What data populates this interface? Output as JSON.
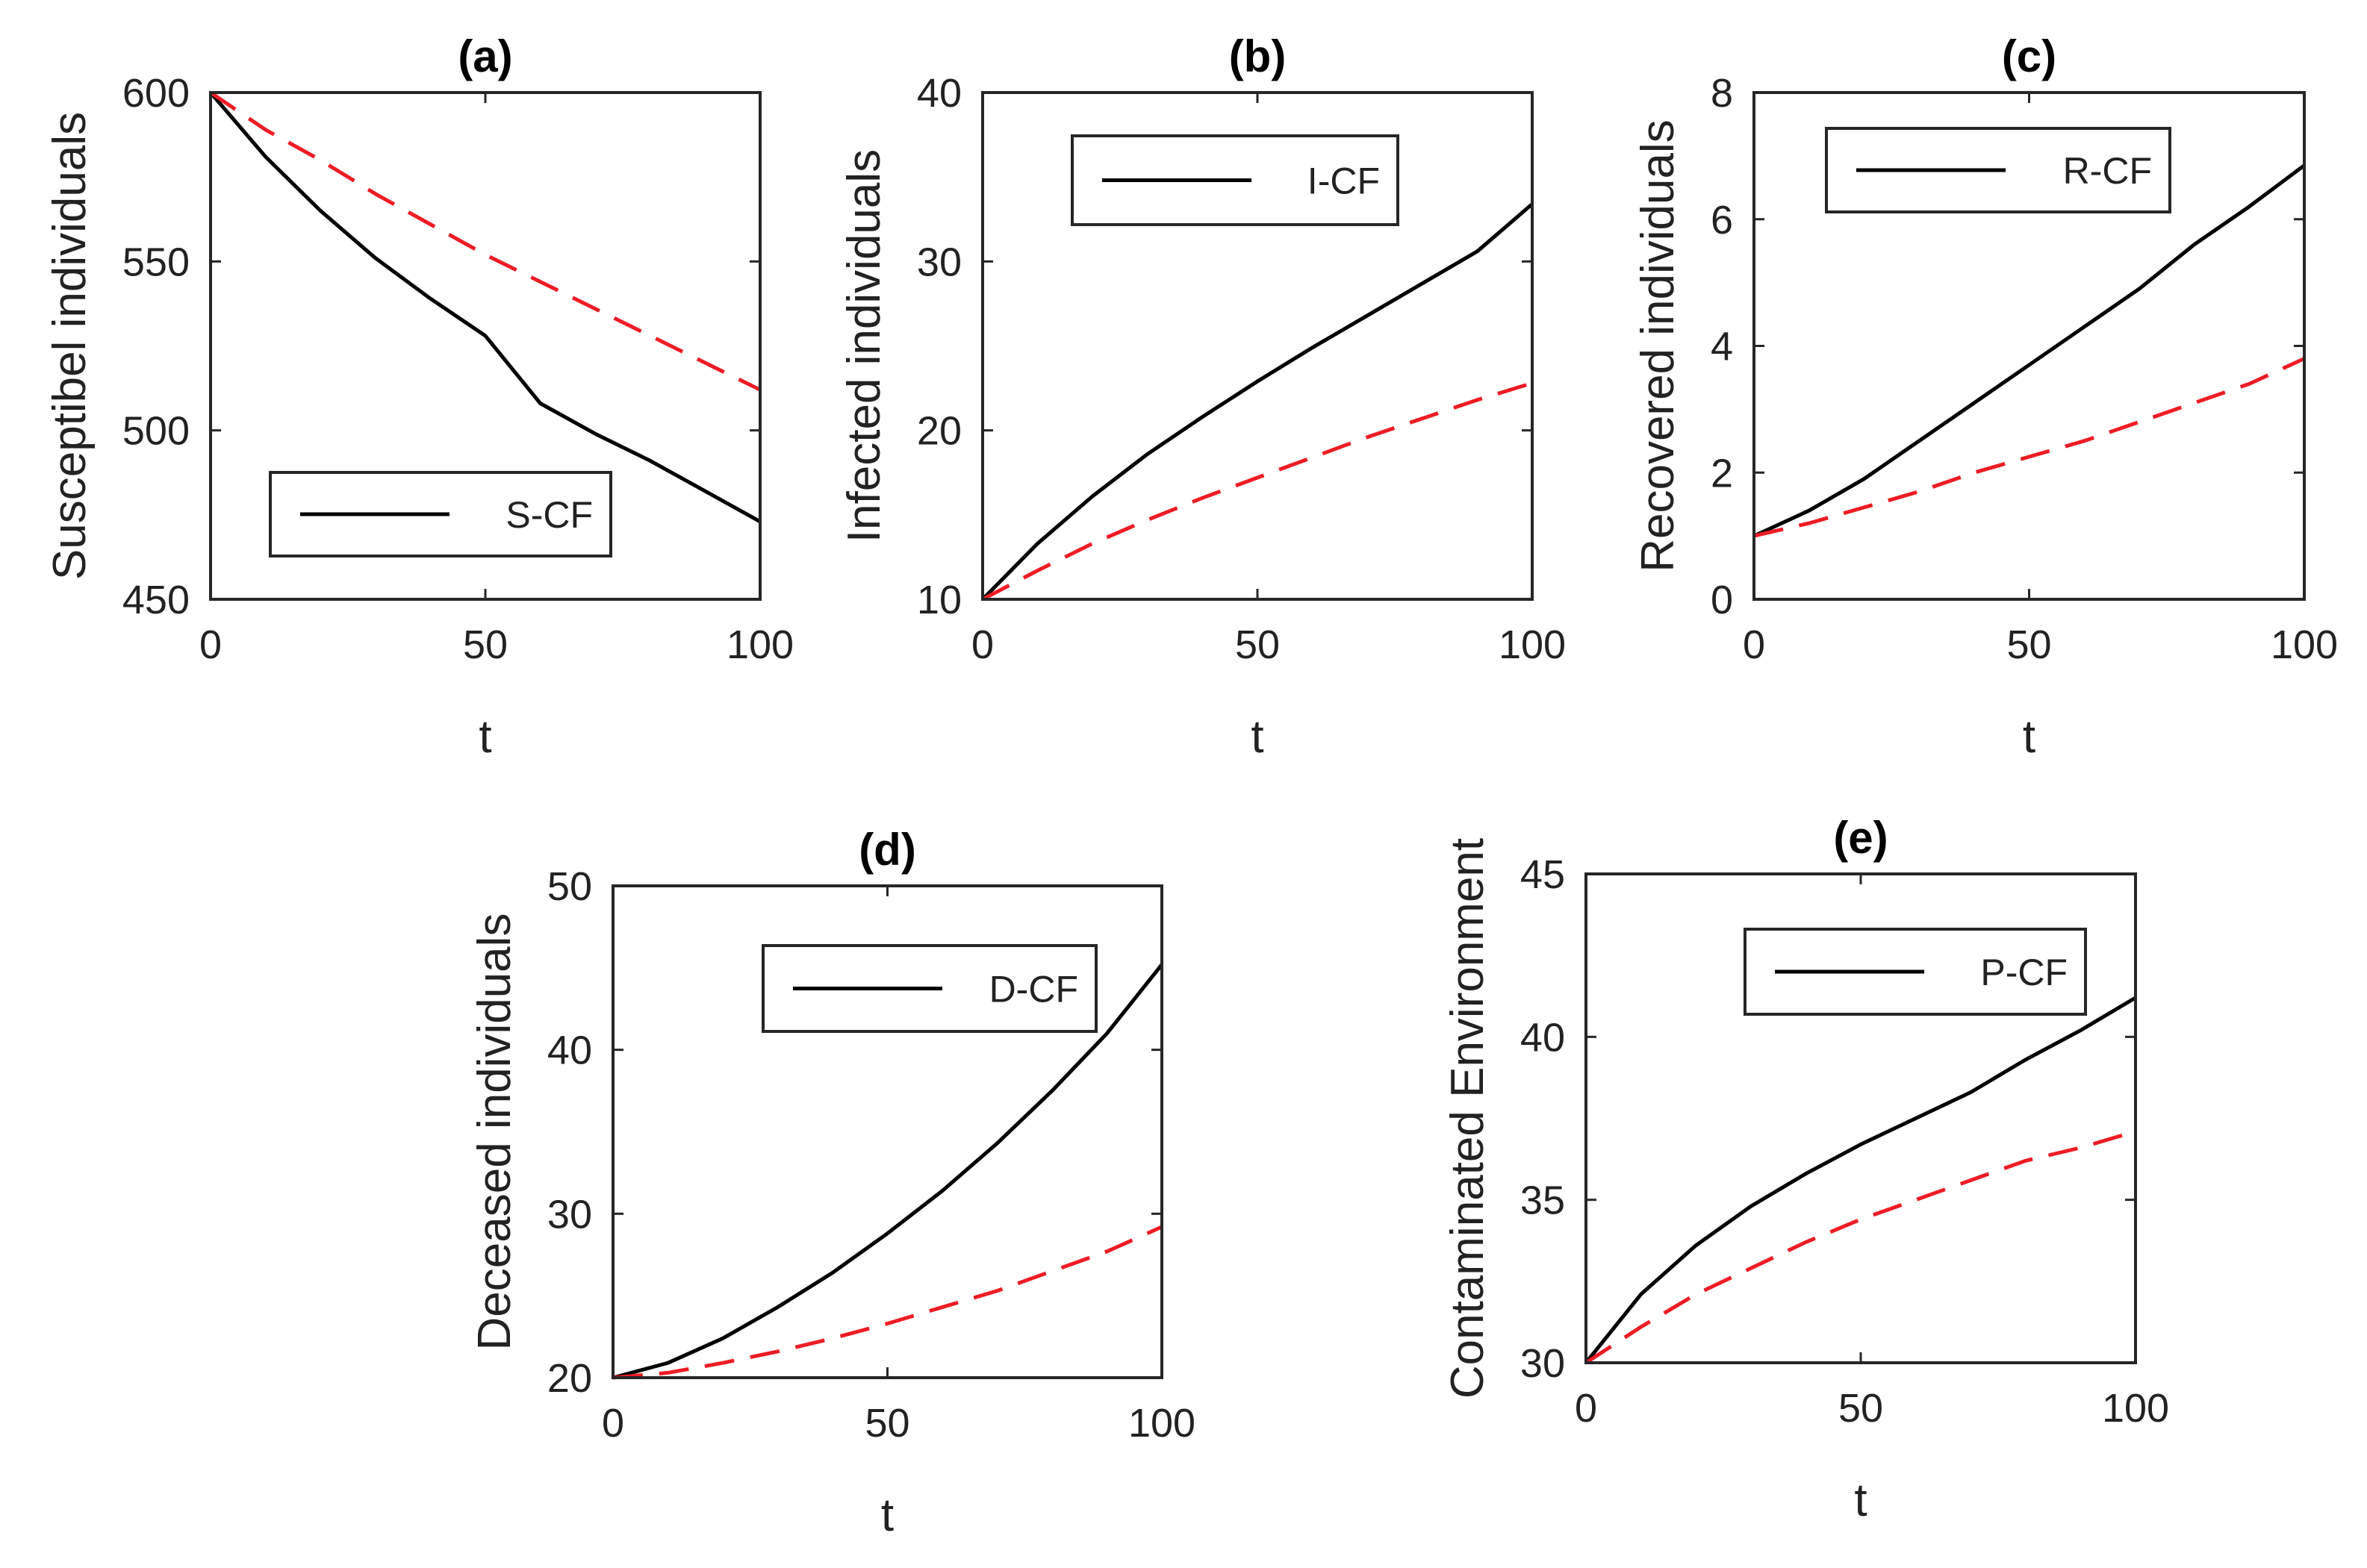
{
  "chart_data": [
    {
      "type": "line",
      "title": "(a)",
      "xlabel": "t",
      "ylabel": "Susceptibel individuals",
      "xlim": [
        0,
        100
      ],
      "ylim": [
        450,
        600
      ],
      "xticks": [
        0,
        50,
        100
      ],
      "yticks": [
        450,
        500,
        550,
        600
      ],
      "grid": false,
      "legend": {
        "position": "bottom-center",
        "entries": [
          "S-CF"
        ]
      },
      "x": [
        0,
        10,
        20,
        30,
        40,
        50,
        60,
        70,
        80,
        90,
        100
      ],
      "series": [
        {
          "name": "S-CF",
          "style": "solid",
          "color": "#000000",
          "values": [
            600,
            581,
            565,
            551,
            539,
            528,
            508,
            499,
            491,
            482,
            473
          ]
        },
        {
          "style": "dashed",
          "color": "#ee1c25",
          "values": [
            600,
            589,
            580,
            570,
            561,
            552,
            544,
            536,
            528,
            520,
            512
          ]
        }
      ]
    },
    {
      "type": "line",
      "title": "(b)",
      "xlabel": "t",
      "ylabel": "Infected individuals",
      "xlim": [
        0,
        100
      ],
      "ylim": [
        10,
        40
      ],
      "xticks": [
        0,
        50,
        100
      ],
      "yticks": [
        10,
        20,
        30,
        40
      ],
      "grid": false,
      "legend": {
        "position": "top-center",
        "entries": [
          "I-CF"
        ]
      },
      "x": [
        0,
        10,
        20,
        30,
        40,
        50,
        60,
        70,
        80,
        90,
        100
      ],
      "series": [
        {
          "name": "I-CF",
          "style": "solid",
          "color": "#000000",
          "values": [
            10,
            13.3,
            16.1,
            18.6,
            20.8,
            22.9,
            24.9,
            26.8,
            28.7,
            30.6,
            33.4
          ]
        },
        {
          "style": "dashed",
          "color": "#ee1c25",
          "values": [
            10,
            11.7,
            13.3,
            14.7,
            16.0,
            17.2,
            18.4,
            19.6,
            20.7,
            21.8,
            22.8
          ]
        }
      ]
    },
    {
      "type": "line",
      "title": "(c)",
      "xlabel": "t",
      "ylabel": "Recovered individuals",
      "xlim": [
        0,
        100
      ],
      "ylim": [
        0,
        8
      ],
      "xticks": [
        0,
        50,
        100
      ],
      "yticks": [
        0,
        2,
        4,
        6,
        8
      ],
      "grid": false,
      "legend": {
        "position": "top-center",
        "entries": [
          "R-CF"
        ]
      },
      "x": [
        0,
        10,
        20,
        30,
        40,
        50,
        60,
        70,
        80,
        90,
        100
      ],
      "series": [
        {
          "name": "R-CF",
          "style": "solid",
          "color": "#000000",
          "values": [
            1.0,
            1.4,
            1.9,
            2.5,
            3.1,
            3.7,
            4.3,
            4.9,
            5.6,
            6.2,
            6.85
          ]
        },
        {
          "style": "dashed",
          "color": "#ee1c25",
          "values": [
            1.0,
            1.2,
            1.45,
            1.7,
            2.0,
            2.25,
            2.5,
            2.8,
            3.1,
            3.4,
            3.8
          ]
        }
      ]
    },
    {
      "type": "line",
      "title": "(d)",
      "xlabel": "t",
      "ylabel": "Deceased individuals",
      "xlim": [
        0,
        100
      ],
      "ylim": [
        20,
        50
      ],
      "xticks": [
        0,
        50,
        100
      ],
      "yticks": [
        20,
        30,
        40,
        50
      ],
      "grid": false,
      "legend": {
        "position": "top-right",
        "entries": [
          "D-CF"
        ]
      },
      "x": [
        0,
        10,
        20,
        30,
        40,
        50,
        60,
        70,
        80,
        90,
        100
      ],
      "series": [
        {
          "name": "D-CF",
          "style": "solid",
          "color": "#000000",
          "values": [
            20,
            20.9,
            22.4,
            24.3,
            26.4,
            28.8,
            31.4,
            34.3,
            37.5,
            41.0,
            45.2
          ]
        },
        {
          "style": "dashed",
          "color": "#ee1c25",
          "values": [
            20,
            20.3,
            20.9,
            21.6,
            22.4,
            23.3,
            24.3,
            25.3,
            26.5,
            27.7,
            29.2
          ]
        }
      ]
    },
    {
      "type": "line",
      "title": "(e)",
      "xlabel": "t",
      "ylabel": "Contaminated Environment",
      "xlim": [
        0,
        100
      ],
      "ylim": [
        30,
        45
      ],
      "xticks": [
        0,
        50,
        100
      ],
      "yticks": [
        30,
        35,
        40,
        45
      ],
      "grid": false,
      "legend": {
        "position": "top-right",
        "entries": [
          "P-CF"
        ]
      },
      "x": [
        0,
        10,
        20,
        30,
        40,
        50,
        60,
        70,
        80,
        90,
        100
      ],
      "series": [
        {
          "name": "P-CF",
          "style": "solid",
          "color": "#000000",
          "values": [
            30,
            32.1,
            33.6,
            34.8,
            35.8,
            36.7,
            37.5,
            38.3,
            39.3,
            40.2,
            41.2
          ]
        },
        {
          "style": "dashed",
          "color": "#ee1c25",
          "values": [
            30,
            31.1,
            32.1,
            32.9,
            33.7,
            34.4,
            35.0,
            35.6,
            36.2,
            36.6,
            37.1
          ]
        }
      ]
    }
  ]
}
